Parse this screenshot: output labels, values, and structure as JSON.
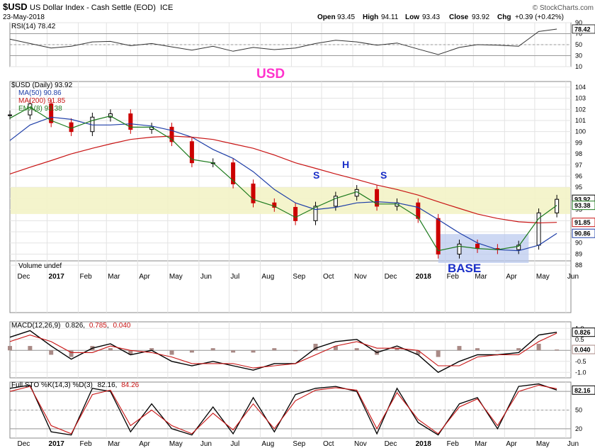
{
  "header": {
    "symbol": "$USD",
    "name": "US Dollar Index - Cash Settle (EOD)",
    "exchange": "ICE",
    "date": "23-May-2018",
    "watermark": "© StockCharts.com",
    "open_label": "Open",
    "open": "93.45",
    "high_label": "High",
    "high": "94.11",
    "low_label": "Low",
    "low": "93.43",
    "close_label": "Close",
    "close": "93.92",
    "chg_label": "Chg",
    "chg": "+0.39 (+0.42%)"
  },
  "annotations": {
    "usd": "USD",
    "s_left": "S",
    "h": "H",
    "s_right": "S",
    "base": "BASE"
  },
  "colors": {
    "price_up": "#000000",
    "price_down": "#cc0000",
    "ma50": "#1f3fa8",
    "ma200": "#c81414",
    "ema8": "#1c7a1c",
    "annotation_magenta": "#ff33cc",
    "annotation_blue": "#1a2fc8",
    "neckline_band": "#f3f3c6",
    "base_box": "#b8c8ee"
  },
  "chart_data": [
    {
      "type": "line",
      "panel": "rsi",
      "legend": "RSI(14) 78.42",
      "last_label": "78.42",
      "ylim": [
        10,
        90
      ],
      "ticks": [
        90,
        70,
        50,
        30,
        10
      ],
      "x": [
        "2016-11-25",
        "2016-12-15",
        "2017-01-05",
        "2017-01-25",
        "2017-02-15",
        "2017-03-05",
        "2017-03-25",
        "2017-04-15",
        "2017-05-05",
        "2017-05-25",
        "2017-06-15",
        "2017-07-05",
        "2017-07-25",
        "2017-08-15",
        "2017-09-05",
        "2017-09-25",
        "2017-10-15",
        "2017-11-05",
        "2017-11-25",
        "2017-12-15",
        "2018-01-05",
        "2018-01-25",
        "2018-02-15",
        "2018-03-05",
        "2018-03-25",
        "2018-04-15",
        "2018-05-05",
        "2018-05-23"
      ],
      "values": [
        60,
        52,
        44,
        47,
        55,
        56,
        48,
        52,
        46,
        40,
        47,
        38,
        45,
        41,
        44,
        52,
        58,
        55,
        49,
        53,
        42,
        32,
        45,
        50,
        49,
        47,
        74,
        78.42
      ]
    },
    {
      "type": "candlestick",
      "panel": "price",
      "legend": "$USD (Daily) 93.92",
      "ylim": [
        87.5,
        104.5
      ],
      "ticks": [
        104,
        103,
        102,
        101,
        100,
        99,
        98,
        97,
        96,
        95,
        94,
        93,
        92,
        91,
        90,
        89,
        88
      ],
      "x": [
        "2016-11-25",
        "2016-12-15",
        "2017-01-05",
        "2017-01-25",
        "2017-02-15",
        "2017-03-05",
        "2017-03-25",
        "2017-04-15",
        "2017-05-05",
        "2017-05-25",
        "2017-06-15",
        "2017-07-05",
        "2017-07-25",
        "2017-08-15",
        "2017-09-05",
        "2017-09-25",
        "2017-10-15",
        "2017-11-05",
        "2017-11-25",
        "2017-12-15",
        "2018-01-05",
        "2018-01-25",
        "2018-02-15",
        "2018-03-05",
        "2018-03-25",
        "2018-04-15",
        "2018-05-05",
        "2018-05-23"
      ],
      "close": [
        101.5,
        102.5,
        100.8,
        100.0,
        101.3,
        101.6,
        100.2,
        100.4,
        99.1,
        97.2,
        97.2,
        95.3,
        93.6,
        93.2,
        92.0,
        93.3,
        94.2,
        94.8,
        93.3,
        93.6,
        92.2,
        89.0,
        89.9,
        89.5,
        89.4,
        89.8,
        92.7,
        93.92
      ],
      "last_label": "93.92"
    },
    {
      "type": "line",
      "panel": "price",
      "series": [
        {
          "name": "MA(50) 90.86",
          "last_label": "90.86",
          "values": [
            99.2,
            100.6,
            101.3,
            101.1,
            100.6,
            100.6,
            100.7,
            100.5,
            100.1,
            99.5,
            98.4,
            97.6,
            96.4,
            94.8,
            93.6,
            93.0,
            93.2,
            93.6,
            93.7,
            93.6,
            93.2,
            92.1,
            90.9,
            90.0,
            89.4,
            89.3,
            89.8,
            90.86
          ]
        },
        {
          "name": "MA(200) 91.85",
          "last_label": "91.85",
          "values": [
            96.2,
            96.8,
            97.4,
            98.0,
            98.5,
            98.9,
            99.3,
            99.5,
            99.6,
            99.5,
            99.3,
            98.9,
            98.5,
            97.9,
            97.2,
            96.7,
            96.2,
            95.7,
            95.2,
            94.8,
            94.3,
            93.7,
            93.1,
            92.6,
            92.2,
            91.9,
            91.8,
            91.85
          ]
        },
        {
          "name": "EMA(8) 93.38",
          "last_label": "93.38",
          "values": [
            101.2,
            102.2,
            101.0,
            100.3,
            101.0,
            101.4,
            100.4,
            100.4,
            99.3,
            97.5,
            97.2,
            95.6,
            93.9,
            93.3,
            92.3,
            93.2,
            94.0,
            94.6,
            93.5,
            93.5,
            92.3,
            89.3,
            89.7,
            89.5,
            89.4,
            89.7,
            92.2,
            93.38
          ]
        }
      ]
    },
    {
      "type": "bar",
      "panel": "volume",
      "legend": "Volume undef"
    },
    {
      "type": "line",
      "panel": "macd",
      "legend_prefix": "MACD(12,26,9)",
      "legend_macd": "0.826",
      "legend_signal": "0.785",
      "legend_hist": "0.040",
      "ylim": [
        -1.25,
        1.3
      ],
      "ticks": [
        1.0,
        0.5,
        0.0,
        -0.5,
        -1.0
      ],
      "tick_labels": [
        "1.0",
        "0.5",
        "0.0",
        "-0.5",
        "-1.0"
      ],
      "x": [
        "2016-11-25",
        "2016-12-15",
        "2017-01-05",
        "2017-01-25",
        "2017-02-15",
        "2017-03-05",
        "2017-03-25",
        "2017-04-15",
        "2017-05-05",
        "2017-05-25",
        "2017-06-15",
        "2017-07-05",
        "2017-07-25",
        "2017-08-15",
        "2017-09-05",
        "2017-09-25",
        "2017-10-15",
        "2017-11-05",
        "2017-11-25",
        "2017-12-15",
        "2018-01-05",
        "2018-01-25",
        "2018-02-15",
        "2018-03-05",
        "2018-03-25",
        "2018-04-15",
        "2018-05-05",
        "2018-05-23"
      ],
      "series": [
        {
          "name": "MACD",
          "last_label": "0.826",
          "values": [
            0.6,
            0.9,
            0.2,
            -0.4,
            0.1,
            0.3,
            -0.2,
            0.0,
            -0.5,
            -0.7,
            -0.5,
            -0.7,
            -0.9,
            -0.6,
            -0.6,
            0.1,
            0.4,
            0.5,
            -0.1,
            0.2,
            -0.2,
            -1.0,
            -0.5,
            -0.2,
            -0.2,
            -0.1,
            0.7,
            0.826
          ]
        },
        {
          "name": "Signal",
          "values": [
            0.4,
            0.7,
            0.4,
            -0.1,
            -0.1,
            0.2,
            0.0,
            -0.1,
            -0.3,
            -0.6,
            -0.6,
            -0.6,
            -0.8,
            -0.7,
            -0.6,
            -0.2,
            0.2,
            0.4,
            0.1,
            0.1,
            0.0,
            -0.7,
            -0.7,
            -0.3,
            -0.2,
            -0.2,
            0.4,
            0.785
          ]
        }
      ],
      "histogram": [
        0.2,
        0.2,
        -0.2,
        -0.3,
        0.2,
        0.1,
        -0.2,
        0.1,
        -0.2,
        -0.1,
        0.1,
        -0.1,
        -0.1,
        0.1,
        0.0,
        0.3,
        0.2,
        0.1,
        -0.2,
        0.1,
        -0.2,
        -0.3,
        0.2,
        0.1,
        0.0,
        0.1,
        0.3,
        0.04
      ],
      "hist_label": "0.040"
    },
    {
      "type": "line",
      "panel": "stochastic",
      "legend_prefix": "Full STO %K(14,3) %D(3)",
      "legend_k": "82.16",
      "legend_d": "84.26",
      "ylim": [
        5,
        95
      ],
      "ticks": [
        80,
        50,
        20
      ],
      "x": [
        "2016-11-25",
        "2016-12-15",
        "2017-01-05",
        "2017-01-25",
        "2017-02-15",
        "2017-03-05",
        "2017-03-25",
        "2017-04-15",
        "2017-05-05",
        "2017-05-25",
        "2017-06-15",
        "2017-07-05",
        "2017-07-25",
        "2017-08-15",
        "2017-09-05",
        "2017-09-25",
        "2017-10-15",
        "2017-11-05",
        "2017-11-25",
        "2017-12-15",
        "2018-01-05",
        "2018-01-25",
        "2018-02-15",
        "2018-03-05",
        "2018-03-25",
        "2018-04-15",
        "2018-05-05",
        "2018-05-23"
      ],
      "series": [
        {
          "name": "%K",
          "last_label": "82.16",
          "values": [
            85,
            90,
            15,
            10,
            85,
            80,
            15,
            60,
            20,
            10,
            55,
            12,
            70,
            15,
            75,
            85,
            88,
            80,
            12,
            85,
            30,
            10,
            60,
            70,
            20,
            88,
            92,
            82.16
          ]
        },
        {
          "name": "%D",
          "values": [
            80,
            88,
            25,
            12,
            75,
            82,
            25,
            50,
            25,
            12,
            45,
            18,
            60,
            20,
            65,
            82,
            86,
            82,
            20,
            78,
            35,
            12,
            55,
            68,
            25,
            80,
            90,
            84.26
          ]
        }
      ]
    }
  ],
  "x_axis": {
    "labels": [
      "Dec",
      "2017",
      "Feb",
      "Mar",
      "Apr",
      "May",
      "Jun",
      "Jul",
      "Aug",
      "Sep",
      "Oct",
      "Nov",
      "Dec",
      "2018",
      "Feb",
      "Mar",
      "Apr",
      "May",
      "Jun"
    ],
    "bold": [
      "2017",
      "2018"
    ]
  }
}
